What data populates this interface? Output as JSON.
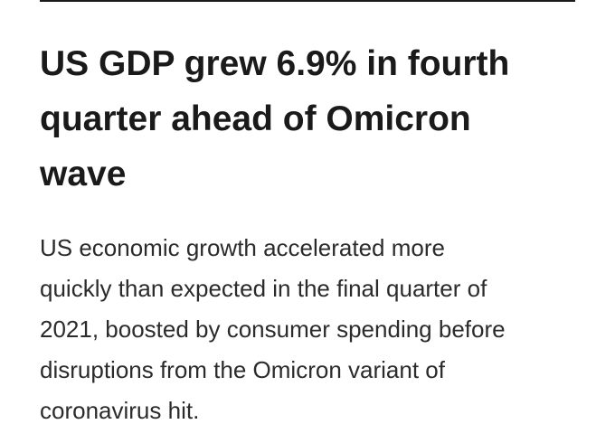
{
  "article": {
    "headline_lines": [
      "US GDP grew 6.9% in fourth",
      "quarter ahead of Omicron",
      "wave"
    ],
    "standfirst_lines": [
      "US economic growth accelerated more",
      "quickly than expected in the final quarter of",
      "2021, boosted by consumer spending before",
      "disruptions from the Omicron variant of",
      "coronavirus hit."
    ]
  }
}
